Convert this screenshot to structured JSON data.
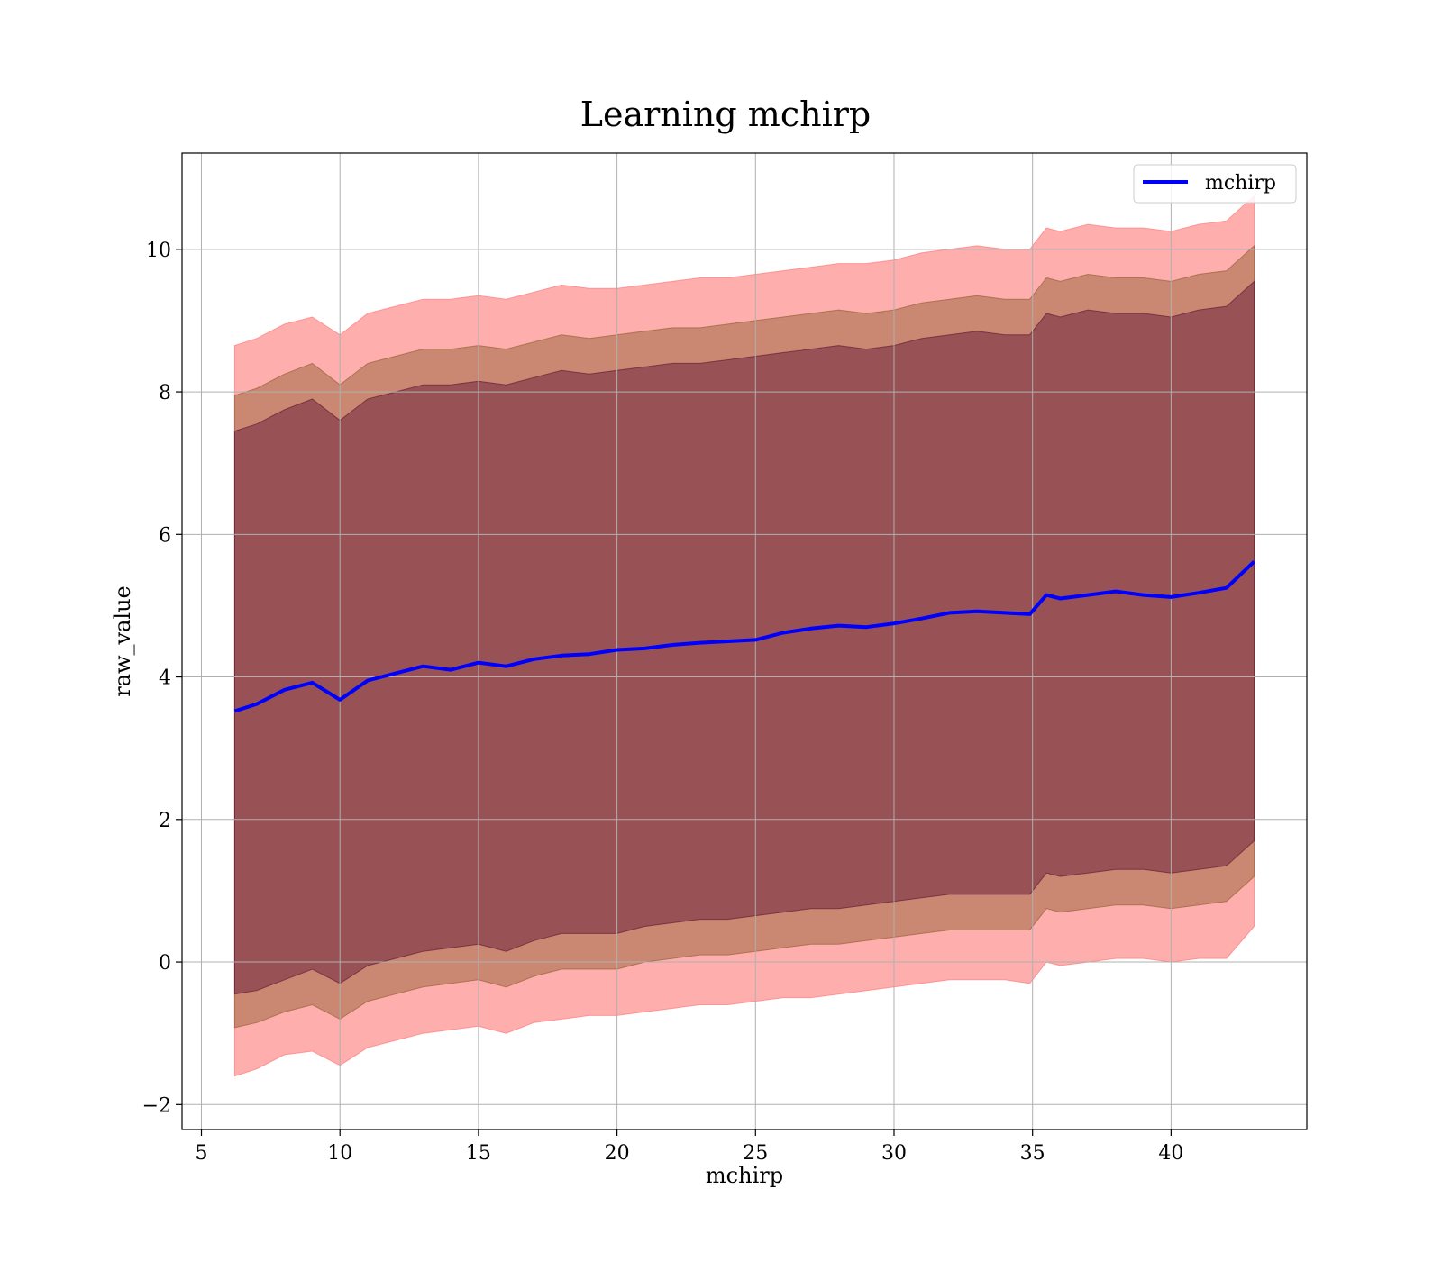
{
  "chart_data": {
    "type": "line",
    "title": "Learning mchirp",
    "xlabel": "mchirp",
    "ylabel": "raw_value",
    "xlim": [
      4.3,
      44.9
    ],
    "ylim": [
      -2.35,
      11.35
    ],
    "x_ticks": [
      5,
      10,
      15,
      20,
      25,
      30,
      35,
      40
    ],
    "y_ticks": [
      -2,
      0,
      2,
      4,
      6,
      8,
      10
    ],
    "y_tick_labels": [
      "−2",
      "0",
      "2",
      "4",
      "6",
      "8",
      "10"
    ],
    "grid": true,
    "legend": {
      "position": "top-right",
      "entries": [
        "mchirp"
      ]
    },
    "colors": {
      "mean_line": "#0000ff",
      "band_outer": "#ff6b6b",
      "band_middle": "#8a5a2a",
      "band_inner": "#5a1030"
    },
    "x": [
      6.2,
      7,
      8,
      9,
      10,
      11,
      12,
      13,
      14,
      15,
      16,
      17,
      18,
      19,
      20,
      21,
      22,
      23,
      24,
      25,
      26,
      27,
      28,
      29,
      30,
      31,
      32,
      33,
      34,
      34.9,
      35.5,
      36,
      37,
      38,
      39,
      40,
      41,
      42,
      43
    ],
    "series": [
      {
        "name": "mchirp",
        "values": [
          3.52,
          3.62,
          3.82,
          3.92,
          3.68,
          3.95,
          4.05,
          4.15,
          4.1,
          4.2,
          4.15,
          4.25,
          4.3,
          4.32,
          4.38,
          4.4,
          4.45,
          4.48,
          4.5,
          4.52,
          4.62,
          4.68,
          4.72,
          4.7,
          4.75,
          4.82,
          4.9,
          4.92,
          4.9,
          4.88,
          5.15,
          5.1,
          5.15,
          5.2,
          5.15,
          5.12,
          5.18,
          5.25,
          5.62
        ]
      }
    ],
    "bands": [
      {
        "lower": [
          -1.6,
          -1.5,
          -1.3,
          -1.25,
          -1.45,
          -1.2,
          -1.1,
          -1.0,
          -0.95,
          -0.9,
          -1.0,
          -0.85,
          -0.8,
          -0.75,
          -0.75,
          -0.7,
          -0.65,
          -0.6,
          -0.6,
          -0.55,
          -0.5,
          -0.5,
          -0.45,
          -0.4,
          -0.35,
          -0.3,
          -0.25,
          -0.25,
          -0.25,
          -0.3,
          0.0,
          -0.05,
          0.0,
          0.05,
          0.05,
          0.0,
          0.05,
          0.05,
          0.5
        ],
        "upper": [
          8.65,
          8.75,
          8.95,
          9.05,
          8.8,
          9.1,
          9.2,
          9.3,
          9.3,
          9.35,
          9.3,
          9.4,
          9.5,
          9.45,
          9.45,
          9.5,
          9.55,
          9.6,
          9.6,
          9.65,
          9.7,
          9.75,
          9.8,
          9.8,
          9.85,
          9.95,
          10.0,
          10.05,
          10.0,
          10.0,
          10.3,
          10.25,
          10.35,
          10.3,
          10.3,
          10.25,
          10.35,
          10.4,
          10.75
        ]
      },
      {
        "lower": [
          -0.92,
          -0.85,
          -0.7,
          -0.6,
          -0.8,
          -0.55,
          -0.45,
          -0.35,
          -0.3,
          -0.25,
          -0.35,
          -0.2,
          -0.1,
          -0.1,
          -0.1,
          0.0,
          0.05,
          0.1,
          0.1,
          0.15,
          0.2,
          0.25,
          0.25,
          0.3,
          0.35,
          0.4,
          0.45,
          0.45,
          0.45,
          0.45,
          0.75,
          0.7,
          0.75,
          0.8,
          0.8,
          0.75,
          0.8,
          0.85,
          1.2
        ],
        "upper": [
          7.95,
          8.05,
          8.25,
          8.4,
          8.1,
          8.4,
          8.5,
          8.6,
          8.6,
          8.65,
          8.6,
          8.7,
          8.8,
          8.75,
          8.8,
          8.85,
          8.9,
          8.9,
          8.95,
          9.0,
          9.05,
          9.1,
          9.15,
          9.1,
          9.15,
          9.25,
          9.3,
          9.35,
          9.3,
          9.3,
          9.6,
          9.55,
          9.65,
          9.6,
          9.6,
          9.55,
          9.65,
          9.7,
          10.05
        ]
      },
      {
        "lower": [
          -0.45,
          -0.4,
          -0.25,
          -0.1,
          -0.3,
          -0.05,
          0.05,
          0.15,
          0.2,
          0.25,
          0.15,
          0.3,
          0.4,
          0.4,
          0.4,
          0.5,
          0.55,
          0.6,
          0.6,
          0.65,
          0.7,
          0.75,
          0.75,
          0.8,
          0.85,
          0.9,
          0.95,
          0.95,
          0.95,
          0.95,
          1.25,
          1.2,
          1.25,
          1.3,
          1.3,
          1.25,
          1.3,
          1.35,
          1.7
        ],
        "upper": [
          7.45,
          7.55,
          7.75,
          7.9,
          7.6,
          7.9,
          8.0,
          8.1,
          8.1,
          8.15,
          8.1,
          8.2,
          8.3,
          8.25,
          8.3,
          8.35,
          8.4,
          8.4,
          8.45,
          8.5,
          8.55,
          8.6,
          8.65,
          8.6,
          8.65,
          8.75,
          8.8,
          8.85,
          8.8,
          8.8,
          9.1,
          9.05,
          9.15,
          9.1,
          9.1,
          9.05,
          9.15,
          9.2,
          9.55
        ]
      }
    ]
  }
}
